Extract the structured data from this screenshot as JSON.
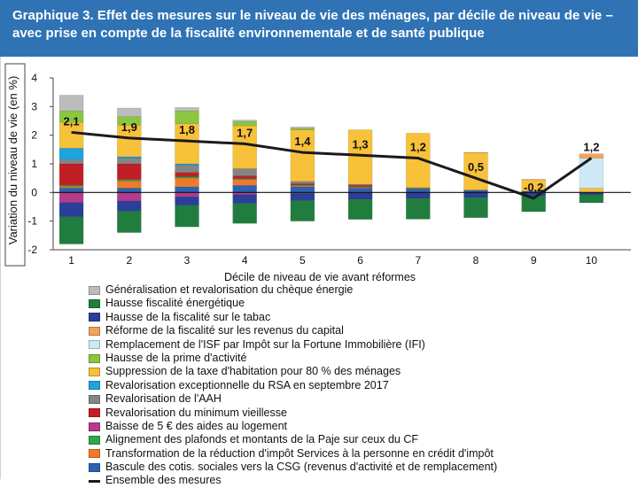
{
  "chart_data": {
    "type": "bar",
    "title": "Graphique 3. Effet des mesures sur le niveau de vie des ménages, par décile de niveau de vie – avec prise en compte de la fiscalité environnementale et de santé publique",
    "xlabel": "Décile de niveau de vie avant réformes",
    "ylabel": "Variation du niveau de vie (en %)",
    "ylim": [
      -2,
      4
    ],
    "yticks": [
      "-2",
      "-1",
      "0",
      "1",
      "2",
      "3",
      "4"
    ],
    "categories": [
      "1",
      "2",
      "3",
      "4",
      "5",
      "6",
      "7",
      "8",
      "9",
      "10"
    ],
    "series": [
      {
        "name": "Bascule des cotis. sociales vers la CSG (revenus d'activité et de remplacement)",
        "color": "#2b63b0",
        "values": [
          0.15,
          0.15,
          0.2,
          0.25,
          0.2,
          0.15,
          0.12,
          0.08,
          0.05,
          0.0
        ]
      },
      {
        "name": "Transformation de la réduction d'impôt Services à la personne en crédit d'impôt",
        "color": "#f07a2a",
        "values": [
          0.05,
          0.25,
          0.3,
          0.2,
          0.03,
          0.03,
          0.02,
          0.01,
          0.0,
          0.0
        ]
      },
      {
        "name": "Alignement des plafonds et montants de la Paje sur ceux du CF",
        "color": "#2da84a",
        "values": [
          0.05,
          0.05,
          0.05,
          0.03,
          0.03,
          0.02,
          0.01,
          0.0,
          0.0,
          0.0
        ]
      },
      {
        "name": "Baisse de 5 € des aides au logement",
        "color": "#b53b8c",
        "values": [
          -0.35,
          -0.3,
          -0.15,
          -0.08,
          -0.03,
          -0.02,
          -0.01,
          0.0,
          0.0,
          0.0
        ]
      },
      {
        "name": "Revalorisation du minimum vieillesse",
        "color": "#c01f25",
        "values": [
          0.75,
          0.55,
          0.15,
          0.1,
          0.05,
          0.05,
          0.0,
          0.0,
          0.0,
          0.0
        ]
      },
      {
        "name": "Revalorisation de l'AAH",
        "color": "#858585",
        "values": [
          0.15,
          0.2,
          0.25,
          0.25,
          0.08,
          0.04,
          0.02,
          0.0,
          0.0,
          0.0
        ]
      },
      {
        "name": "Revalorisation exceptionnelle du RSA en septembre 2017",
        "color": "#1fa3dc",
        "values": [
          0.4,
          0.05,
          0.05,
          0.0,
          0.0,
          0.0,
          0.0,
          0.0,
          0.0,
          0.0
        ]
      },
      {
        "name": "Suppression de la taxe d'habitation pour 80 % des ménages",
        "color": "#f7c13a",
        "values": [
          0.9,
          1.1,
          1.4,
          1.5,
          1.8,
          1.9,
          1.9,
          1.3,
          0.4,
          0.15
        ]
      },
      {
        "name": "Hausse de la prime d'activité",
        "color": "#8cc53f",
        "values": [
          0.4,
          0.3,
          0.45,
          0.15,
          0.05,
          0.0,
          0.0,
          0.0,
          0.0,
          0.0
        ]
      },
      {
        "name": "Remplacement de l'ISF par Impôt sur la Fortune Immobilière (IFI)",
        "color": "#cde9f6",
        "values": [
          0.0,
          0.0,
          0.0,
          0.0,
          0.0,
          0.0,
          0.0,
          0.0,
          0.0,
          1.05
        ]
      },
      {
        "name": "Réforme de la fiscalité sur les revenus du capital",
        "color": "#f5a15a",
        "values": [
          0.0,
          0.0,
          0.0,
          0.0,
          0.0,
          0.0,
          0.0,
          0.01,
          0.01,
          0.15
        ]
      },
      {
        "name": "Hausse de la fiscalité sur le tabac",
        "color": "#2a3f9a",
        "values": [
          -0.5,
          -0.35,
          -0.3,
          -0.3,
          -0.25,
          -0.22,
          -0.2,
          -0.18,
          -0.12,
          -0.08
        ]
      },
      {
        "name": "Hausse fiscalité énergétique",
        "color": "#217d3e",
        "values": [
          -0.95,
          -0.75,
          -0.75,
          -0.7,
          -0.72,
          -0.7,
          -0.72,
          -0.7,
          -0.55,
          -0.28
        ]
      },
      {
        "name": "Généralisation et revalorisation du chèque énergie",
        "color": "#bcbcbc",
        "values": [
          0.55,
          0.3,
          0.12,
          0.05,
          0.05,
          0.0,
          0.0,
          0.0,
          0.0,
          0.0
        ]
      }
    ],
    "total": {
      "name": "Ensemble des mesures",
      "color": "#1a1a1a",
      "values": [
        2.1,
        1.9,
        1.8,
        1.7,
        1.4,
        1.3,
        1.2,
        0.5,
        -0.2,
        1.2
      ],
      "labels": [
        "2,1",
        "1,9",
        "1,8",
        "1,7",
        "1,4",
        "1,3",
        "1,2",
        "0,5",
        "-0,2",
        "1,2"
      ]
    },
    "legend_order": [
      "Généralisation et revalorisation du chèque énergie",
      "Hausse fiscalité énergétique",
      "Hausse de la fiscalité sur le tabac",
      "Réforme de la fiscalité sur les revenus du capital",
      "Remplacement de l'ISF par Impôt sur la Fortune Immobilière (IFI)",
      "Hausse de la prime d'activité",
      "Suppression de la taxe d'habitation pour 80 % des ménages",
      "Revalorisation exceptionnelle du RSA en septembre 2017",
      "Revalorisation de l'AAH",
      "Revalorisation du minimum vieillesse",
      "Baisse de 5 € des aides au logement",
      "Alignement des plafonds et montants de la Paje sur ceux du CF",
      "Transformation de la réduction d'impôt Services à la personne en crédit d'impôt",
      "Bascule des cotis. sociales vers la CSG (revenus d'activité et de remplacement)",
      "Ensemble des mesures"
    ]
  }
}
